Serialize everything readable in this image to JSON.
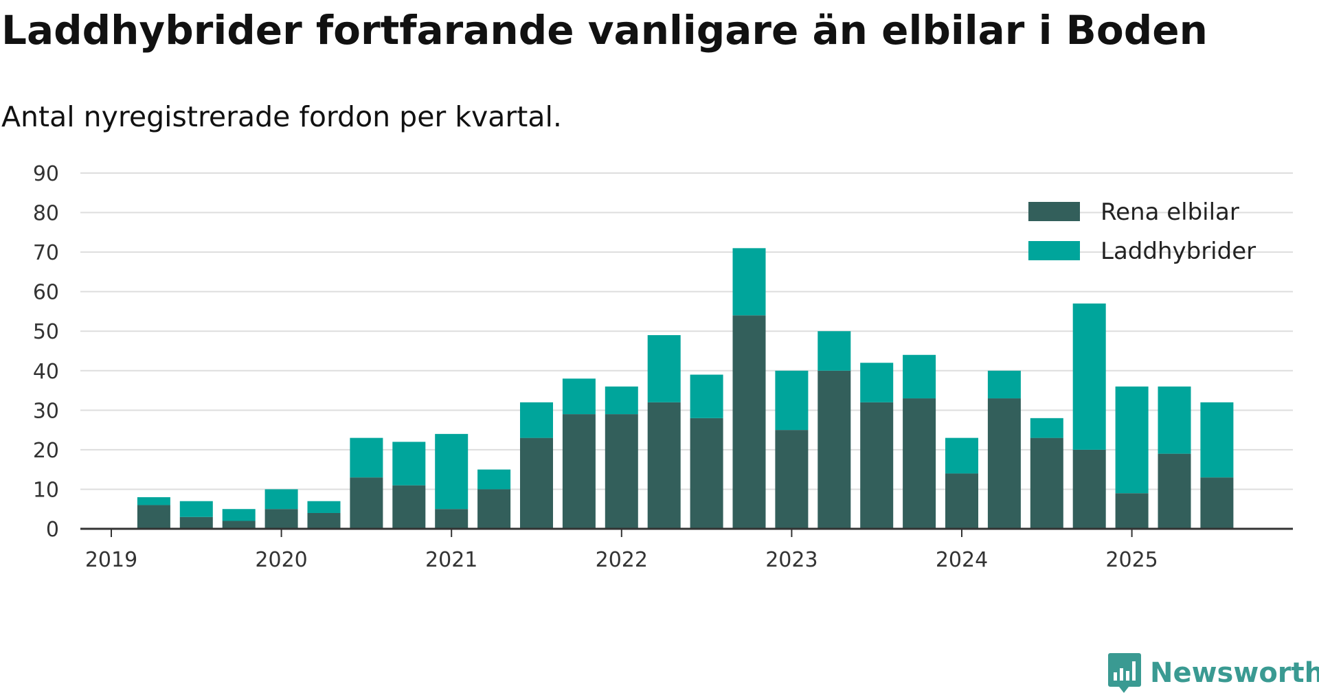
{
  "title": "Laddhybrider fortfarande vanligare än elbilar i Boden",
  "subtitle": "Antal nyregistrerade fordon per kvartal.",
  "brand": "Newsworthy",
  "colors": {
    "rena": "#335f5b",
    "ladd": "#00a59b",
    "grid": "#dddddd",
    "axis": "#333333",
    "brand": "#3a9a92"
  },
  "chart_data": {
    "type": "bar",
    "stacked": true,
    "title": "Laddhybrider fortfarande vanligare än elbilar i Boden",
    "subtitle": "Antal nyregistrerade fordon per kvartal.",
    "xlabel": "",
    "ylabel": "",
    "ylim": [
      0,
      90
    ],
    "yticks": [
      "0",
      "10",
      "20",
      "30",
      "40",
      "50",
      "60",
      "70",
      "80",
      "90"
    ],
    "xticks": [
      "2019",
      "2020",
      "2021",
      "2022",
      "2023",
      "2024",
      "2025"
    ],
    "legend_position": "top-right",
    "grid": true,
    "categories": [
      "2019 Q1",
      "2019 Q2",
      "2019 Q3",
      "2019 Q4",
      "2020 Q1",
      "2020 Q2",
      "2020 Q3",
      "2020 Q4",
      "2021 Q1",
      "2021 Q2",
      "2021 Q3",
      "2021 Q4",
      "2022 Q1",
      "2022 Q2",
      "2022 Q3",
      "2022 Q4",
      "2023 Q1",
      "2023 Q2",
      "2023 Q3",
      "2023 Q4",
      "2024 Q1",
      "2024 Q2",
      "2024 Q3",
      "2024 Q4",
      "2025 Q1",
      "2025 Q2",
      "2025 Q3"
    ],
    "series": [
      {
        "name": "Rena elbilar",
        "values": [
          6,
          3,
          2,
          5,
          4,
          13,
          11,
          5,
          10,
          23,
          29,
          29,
          32,
          28,
          54,
          25,
          40,
          32,
          33,
          14,
          33,
          23,
          20,
          9,
          19,
          13,
          0
        ]
      },
      {
        "name": "Laddhybrider",
        "values": [
          2,
          4,
          3,
          5,
          3,
          10,
          11,
          19,
          5,
          9,
          9,
          7,
          17,
          11,
          17,
          15,
          10,
          10,
          11,
          9,
          7,
          5,
          37,
          27,
          17,
          19,
          0
        ]
      }
    ]
  }
}
